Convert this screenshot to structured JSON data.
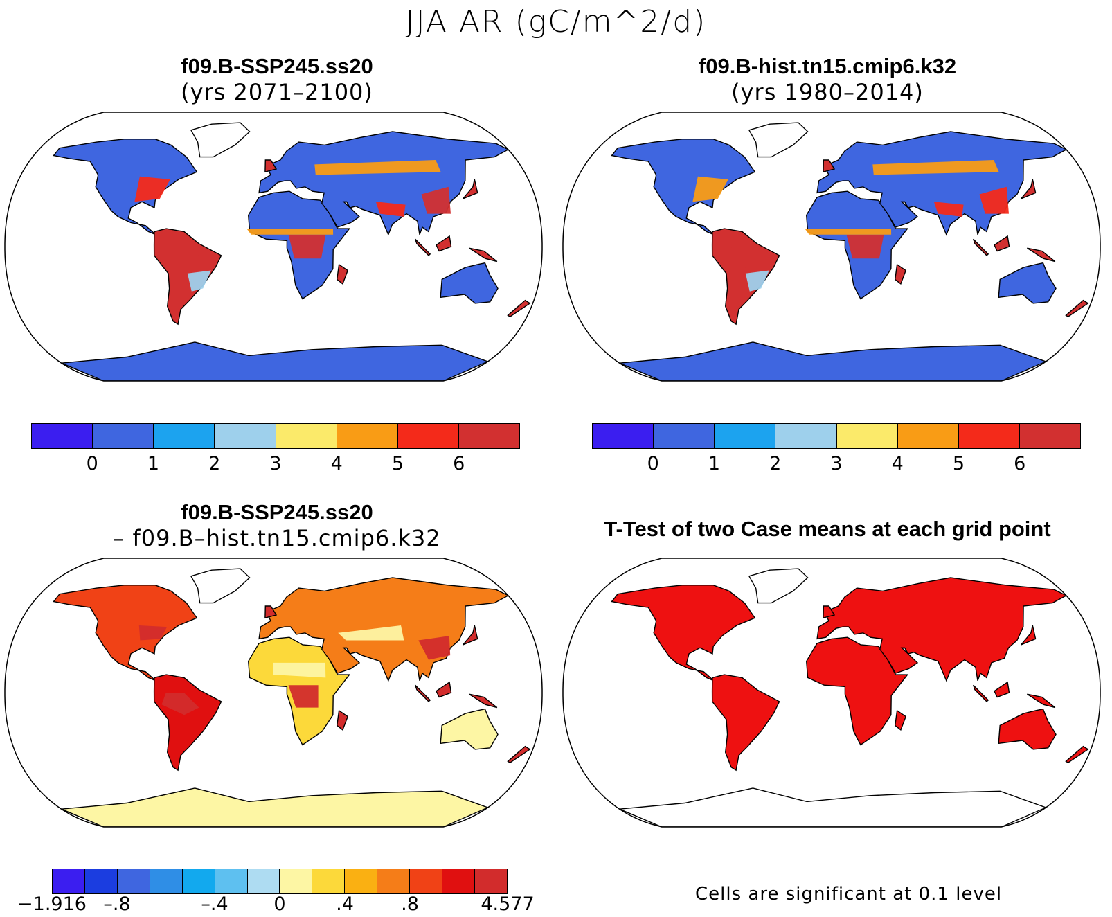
{
  "main_title": "JJA AR (gC/m^2/d)",
  "panels": [
    {
      "title": "f09.B-SSP245.ss20",
      "subtitle": "(yrs 2071–2100)"
    },
    {
      "title": "f09.B-hist.tn15.cmip6.k32",
      "subtitle": "(yrs 1980–2014)"
    },
    {
      "title": "f09.B-SSP245.ss20",
      "subtitle": "– f09.B–hist.tn15.cmip6.k32"
    },
    {
      "title": "T-Test of two Case means at each grid point",
      "subtitle": ""
    }
  ],
  "colorbar_main": {
    "colors": [
      "#3b1ef0",
      "#3f66e0",
      "#1ca3ef",
      "#9ed0ec",
      "#fbea6a",
      "#f99c15",
      "#f42a1a",
      "#d23030"
    ],
    "labels": [
      "0",
      "1",
      "2",
      "3",
      "4",
      "5",
      "6"
    ]
  },
  "colorbar_diff": {
    "colors": [
      "#3b1ef0",
      "#1b3de0",
      "#3f66e0",
      "#2f8ee6",
      "#12a9ee",
      "#5ec0f0",
      "#aedcf2",
      "#fdf6a4",
      "#fcd93a",
      "#fab012",
      "#f57d18",
      "#f04216",
      "#e01010",
      "#d22c2c"
    ],
    "labels": [
      "−1.916",
      "–.8",
      "–.4",
      "0",
      ".4",
      ".8",
      "4.577"
    ]
  },
  "sig_note": "Cells are significant at 0.1 level"
}
